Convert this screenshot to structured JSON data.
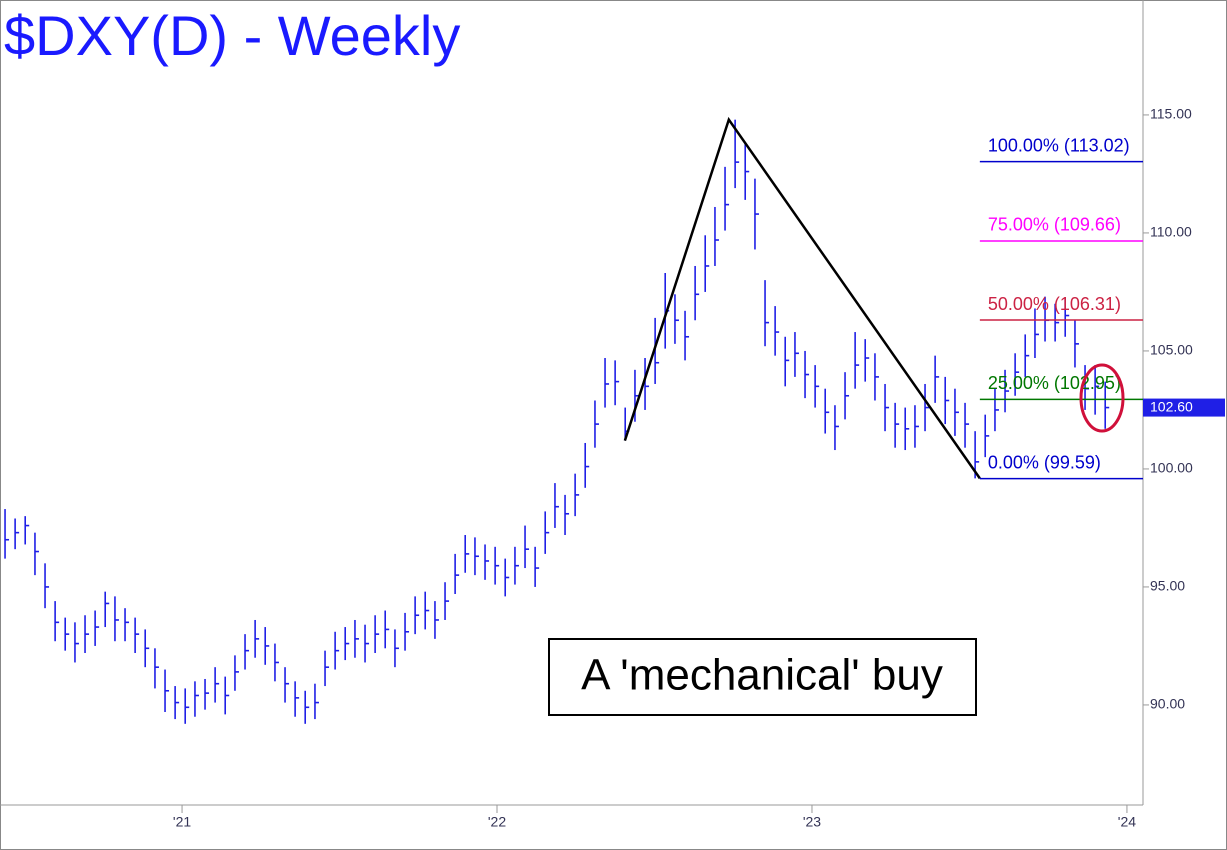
{
  "chart_data": {
    "type": "ohlc",
    "title": "$DXY(D) - Weekly",
    "annotation": "A 'mechanical' buy",
    "color": "#1f1fe6",
    "xlim": [
      2020.422,
      2024.051
    ],
    "ylim": [
      85.76,
      119.87
    ],
    "xticks": [
      {
        "value": 2021,
        "label": "'21"
      },
      {
        "value": 2022,
        "label": "'22"
      },
      {
        "value": 2023,
        "label": "'23"
      },
      {
        "value": 2024,
        "label": "'24"
      }
    ],
    "yticks": [
      {
        "value": 90,
        "label": "90.00"
      },
      {
        "value": 95,
        "label": "95.00"
      },
      {
        "value": 100,
        "label": "100.00"
      },
      {
        "value": 105,
        "label": "105.00"
      },
      {
        "value": 110,
        "label": "110.00"
      },
      {
        "value": 115,
        "label": "115.00"
      }
    ],
    "last_price": {
      "value": 102.6,
      "label": "102.60",
      "color": "#1f1fe6"
    },
    "pattern": {
      "x": [
        2022.406,
        2022.736,
        2023.533
      ],
      "y": [
        101.2,
        114.8,
        99.6
      ],
      "color": "#000000"
    },
    "fib_levels": [
      {
        "label": "100.00% (113.02)",
        "value": 113.02,
        "color": "#0000cc"
      },
      {
        "label": "75.00% (109.66)",
        "value": 109.66,
        "color": "#ff00ff"
      },
      {
        "label": "50.00% (106.31)",
        "value": 106.31,
        "color": "#cc2244"
      },
      {
        "label": "25.00% (102.95)",
        "value": 102.95,
        "color": "#007700"
      },
      {
        "label": "0.00% (99.59)",
        "value": 99.59,
        "color": "#0000cc"
      }
    ],
    "x": [
      2020.438,
      2020.47,
      2020.502,
      2020.533,
      2020.565,
      2020.597,
      2020.629,
      2020.66,
      2020.692,
      2020.724,
      2020.756,
      2020.787,
      2020.819,
      2020.851,
      2020.883,
      2020.914,
      2020.946,
      2020.978,
      2021.01,
      2021.041,
      2021.073,
      2021.105,
      2021.137,
      2021.168,
      2021.2,
      2021.232,
      2021.264,
      2021.295,
      2021.327,
      2021.359,
      2021.391,
      2021.422,
      2021.454,
      2021.486,
      2021.518,
      2021.549,
      2021.581,
      2021.613,
      2021.645,
      2021.676,
      2021.708,
      2021.74,
      2021.772,
      2021.803,
      2021.835,
      2021.867,
      2021.899,
      2021.93,
      2021.962,
      2021.994,
      2022.026,
      2022.057,
      2022.089,
      2022.121,
      2022.153,
      2022.184,
      2022.216,
      2022.248,
      2022.28,
      2022.311,
      2022.343,
      2022.375,
      2022.407,
      2022.438,
      2022.47,
      2022.502,
      2022.534,
      2022.565,
      2022.597,
      2022.629,
      2022.661,
      2022.692,
      2022.724,
      2022.756,
      2022.788,
      2022.819,
      2022.851,
      2022.883,
      2022.915,
      2022.946,
      2022.978,
      2023.01,
      2023.042,
      2023.073,
      2023.105,
      2023.137,
      2023.169,
      2023.2,
      2023.232,
      2023.264,
      2023.296,
      2023.327,
      2023.359,
      2023.391,
      2023.423,
      2023.454,
      2023.486,
      2023.518,
      2023.55,
      2023.581,
      2023.613,
      2023.645,
      2023.677,
      2023.708,
      2023.74,
      2023.772,
      2023.804,
      2023.835,
      2023.867,
      2023.899,
      2023.931
    ],
    "high": [
      98.3,
      97.9,
      98.0,
      97.3,
      96.0,
      94.4,
      93.7,
      93.5,
      93.8,
      94.0,
      94.8,
      94.6,
      94.1,
      93.7,
      93.2,
      92.4,
      91.5,
      90.8,
      90.7,
      91.0,
      91.1,
      91.6,
      91.2,
      92.1,
      93.0,
      93.6,
      93.3,
      92.6,
      91.6,
      91.0,
      90.6,
      90.9,
      92.3,
      93.1,
      93.3,
      93.6,
      93.4,
      93.8,
      94.0,
      93.2,
      93.9,
      94.6,
      94.8,
      94.4,
      95.2,
      96.4,
      97.2,
      97.1,
      96.8,
      96.7,
      96.2,
      96.7,
      97.6,
      96.7,
      98.2,
      99.4,
      98.9,
      99.8,
      101.1,
      102.9,
      104.7,
      104.6,
      102.6,
      104.2,
      104.7,
      106.4,
      108.3,
      107.4,
      106.7,
      108.6,
      109.9,
      111.1,
      112.8,
      114.8,
      113.8,
      112.3,
      108.0,
      106.9,
      105.6,
      105.8,
      105.0,
      104.4,
      103.4,
      102.7,
      104.1,
      105.8,
      105.5,
      104.9,
      103.6,
      102.8,
      102.6,
      102.7,
      103.6,
      104.8,
      103.9,
      103.4,
      102.8,
      101.6,
      102.3,
      103.4,
      104.2,
      104.9,
      105.7,
      106.8,
      107.3,
      107.0,
      107.2,
      106.3,
      104.4,
      104.4,
      103.7
    ],
    "low": [
      96.2,
      96.6,
      96.8,
      95.5,
      94.1,
      92.7,
      92.3,
      91.8,
      92.2,
      92.5,
      93.3,
      92.7,
      92.7,
      92.2,
      91.6,
      90.7,
      89.7,
      89.4,
      89.2,
      89.5,
      89.8,
      90.1,
      89.6,
      90.6,
      91.5,
      92.0,
      91.7,
      91.0,
      90.1,
      89.5,
      89.2,
      89.4,
      90.8,
      91.5,
      91.9,
      92.0,
      91.8,
      92.2,
      92.4,
      91.6,
      92.3,
      93.0,
      93.2,
      92.8,
      93.6,
      94.7,
      95.6,
      95.5,
      95.3,
      95.1,
      94.6,
      95.1,
      95.8,
      95.0,
      96.4,
      97.5,
      97.2,
      98.0,
      99.2,
      100.9,
      102.6,
      102.7,
      101.2,
      102.0,
      102.5,
      103.6,
      105.1,
      105.3,
      104.6,
      106.3,
      107.5,
      108.6,
      110.1,
      111.9,
      111.4,
      109.3,
      105.2,
      104.8,
      103.5,
      103.9,
      103.0,
      102.6,
      101.5,
      100.8,
      102.1,
      103.4,
      103.7,
      102.9,
      101.6,
      100.9,
      100.8,
      100.9,
      101.6,
      102.8,
      101.9,
      101.4,
      100.9,
      99.6,
      100.5,
      101.6,
      102.4,
      103.1,
      103.9,
      104.7,
      105.4,
      105.4,
      105.6,
      104.3,
      102.5,
      102.3,
      101.7
    ],
    "close": [
      97.0,
      97.3,
      97.6,
      96.5,
      95.0,
      93.5,
      93.0,
      92.6,
      93.0,
      93.3,
      94.3,
      93.6,
      93.5,
      93.0,
      92.4,
      91.6,
      90.6,
      90.1,
      89.9,
      90.4,
      90.5,
      90.9,
      90.4,
      91.4,
      92.3,
      92.8,
      92.5,
      91.8,
      90.9,
      90.3,
      89.9,
      90.1,
      91.6,
      92.3,
      92.6,
      92.8,
      92.6,
      93.0,
      93.2,
      92.4,
      93.1,
      93.8,
      94.0,
      93.6,
      94.4,
      95.5,
      96.4,
      96.3,
      96.1,
      95.9,
      95.4,
      95.9,
      96.6,
      95.8,
      97.3,
      98.4,
      98.1,
      98.9,
      100.1,
      101.9,
      103.6,
      103.7,
      101.6,
      103.1,
      103.5,
      104.5,
      106.7,
      106.3,
      105.6,
      107.4,
      108.6,
      109.7,
      111.2,
      113.0,
      112.6,
      110.8,
      106.2,
      105.8,
      104.6,
      104.9,
      104.0,
      103.5,
      102.4,
      101.8,
      103.1,
      104.4,
      104.7,
      103.9,
      102.6,
      101.9,
      101.7,
      101.8,
      102.6,
      103.9,
      102.9,
      102.4,
      101.9,
      100.3,
      101.4,
      102.5,
      103.3,
      104.1,
      104.8,
      105.7,
      106.3,
      106.2,
      106.5,
      105.3,
      103.4,
      103.5,
      102.6
    ]
  }
}
